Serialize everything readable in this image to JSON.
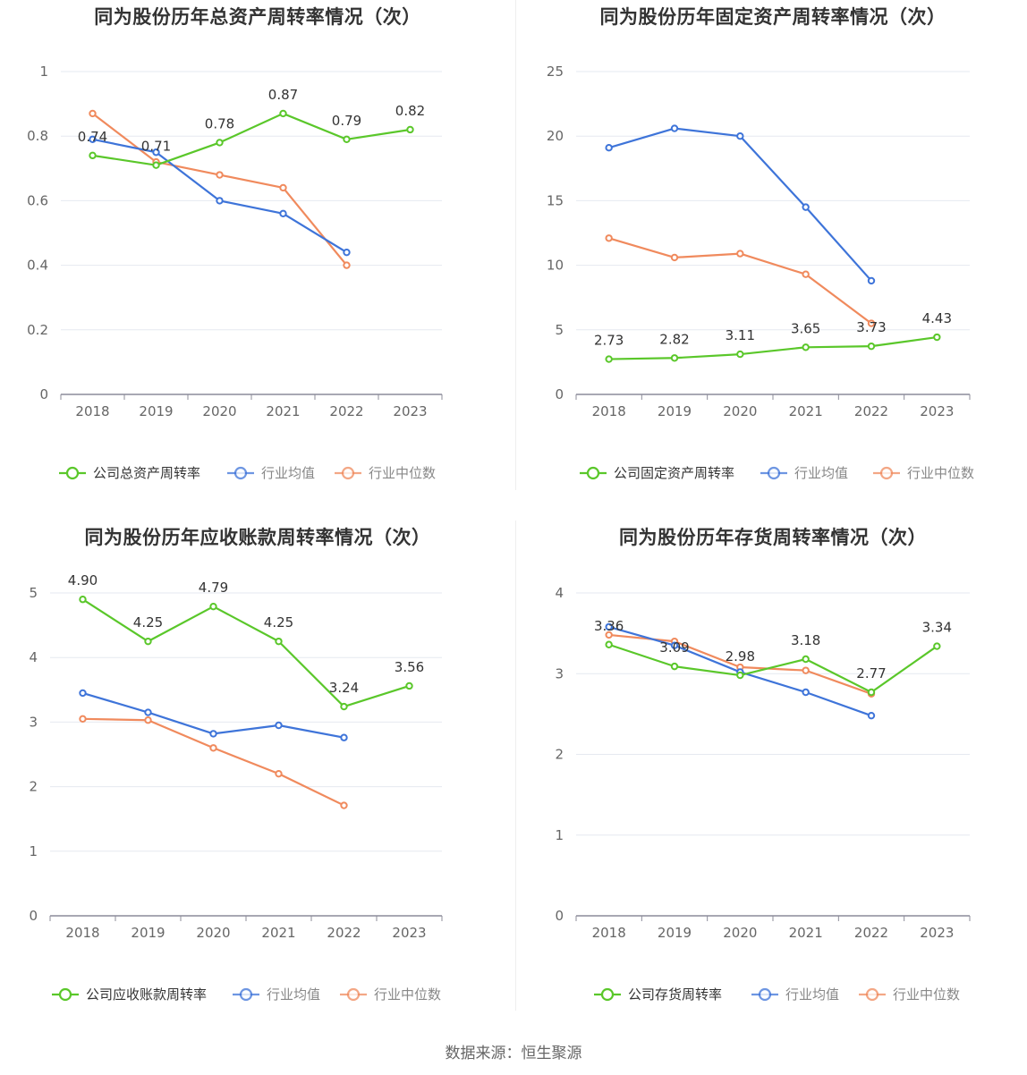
{
  "footer": {
    "source": "数据来源：恒生聚源"
  },
  "colors": {
    "company": "#5ac72a",
    "mean": "#3e74d9",
    "median": "#f08a5d"
  },
  "chart_data": [
    {
      "type": "line",
      "title": "同为股份历年总资产周转率情况（次）",
      "x": [
        "2018",
        "2019",
        "2020",
        "2021",
        "2022",
        "2023"
      ],
      "ylim": [
        0,
        1
      ],
      "yticks": [
        0,
        0.2,
        0.4,
        0.6,
        0.8,
        1
      ],
      "ytick_labels": [
        "0",
        "0.2",
        "0.4",
        "0.6",
        "0.8",
        "1"
      ],
      "grid": true,
      "legend_position": "bottom",
      "series": [
        {
          "name": "公司总资产周转率",
          "role": "company",
          "values": [
            0.74,
            0.71,
            0.78,
            0.87,
            0.79,
            0.82
          ],
          "labels": [
            "0.74",
            "0.71",
            "0.78",
            "0.87",
            "0.79",
            "0.82"
          ]
        },
        {
          "name": "行业均值",
          "role": "mean",
          "values": [
            0.79,
            0.75,
            0.6,
            0.56,
            0.44,
            null
          ]
        },
        {
          "name": "行业中位数",
          "role": "median",
          "values": [
            0.87,
            0.72,
            0.68,
            0.64,
            0.4,
            null
          ]
        }
      ]
    },
    {
      "type": "line",
      "title": "同为股份历年固定资产周转率情况（次）",
      "x": [
        "2018",
        "2019",
        "2020",
        "2021",
        "2022",
        "2023"
      ],
      "ylim": [
        0,
        25
      ],
      "yticks": [
        0,
        5,
        10,
        15,
        20,
        25
      ],
      "ytick_labels": [
        "0",
        "5",
        "10",
        "15",
        "20",
        "25"
      ],
      "grid": true,
      "legend_position": "bottom",
      "series": [
        {
          "name": "公司固定资产周转率",
          "role": "company",
          "values": [
            2.73,
            2.82,
            3.11,
            3.65,
            3.73,
            4.43
          ],
          "labels": [
            "2.73",
            "2.82",
            "3.11",
            "3.65",
            "3.73",
            "4.43"
          ]
        },
        {
          "name": "行业均值",
          "role": "mean",
          "values": [
            19.1,
            20.6,
            20.0,
            14.5,
            8.8,
            null
          ]
        },
        {
          "name": "行业中位数",
          "role": "median",
          "values": [
            12.1,
            10.6,
            10.9,
            9.3,
            5.5,
            null
          ]
        }
      ]
    },
    {
      "type": "line",
      "title": "同为股份历年应收账款周转率情况（次）",
      "x": [
        "2018",
        "2019",
        "2020",
        "2021",
        "2022",
        "2023"
      ],
      "ylim": [
        0,
        5
      ],
      "yticks": [
        0,
        1,
        2,
        3,
        4,
        5
      ],
      "ytick_labels": [
        "0",
        "1",
        "2",
        "3",
        "4",
        "5"
      ],
      "grid": true,
      "legend_position": "bottom",
      "series": [
        {
          "name": "公司应收账款周转率",
          "role": "company",
          "values": [
            4.9,
            4.25,
            4.79,
            4.25,
            3.24,
            3.56
          ],
          "labels": [
            "4.90",
            "4.25",
            "4.79",
            "4.25",
            "3.24",
            "3.56"
          ]
        },
        {
          "name": "行业均值",
          "role": "mean",
          "values": [
            3.45,
            3.15,
            2.82,
            2.95,
            2.76,
            null
          ]
        },
        {
          "name": "行业中位数",
          "role": "median",
          "values": [
            3.05,
            3.03,
            2.6,
            2.2,
            1.71,
            null
          ]
        }
      ]
    },
    {
      "type": "line",
      "title": "同为股份历年存货周转率情况（次）",
      "x": [
        "2018",
        "2019",
        "2020",
        "2021",
        "2022",
        "2023"
      ],
      "ylim": [
        0,
        4
      ],
      "yticks": [
        0,
        1,
        2,
        3,
        4
      ],
      "ytick_labels": [
        "0",
        "1",
        "2",
        "3",
        "4"
      ],
      "grid": true,
      "legend_position": "bottom",
      "series": [
        {
          "name": "公司存货周转率",
          "role": "company",
          "values": [
            3.36,
            3.09,
            2.98,
            3.18,
            2.77,
            3.34
          ],
          "labels": [
            "3.36",
            "3.09",
            "2.98",
            "3.18",
            "2.77",
            "3.34"
          ]
        },
        {
          "name": "行业均值",
          "role": "mean",
          "values": [
            3.58,
            3.35,
            3.02,
            2.77,
            2.48,
            null
          ]
        },
        {
          "name": "行业中位数",
          "role": "median",
          "values": [
            3.48,
            3.4,
            3.08,
            3.04,
            2.75,
            null
          ]
        }
      ]
    }
  ]
}
